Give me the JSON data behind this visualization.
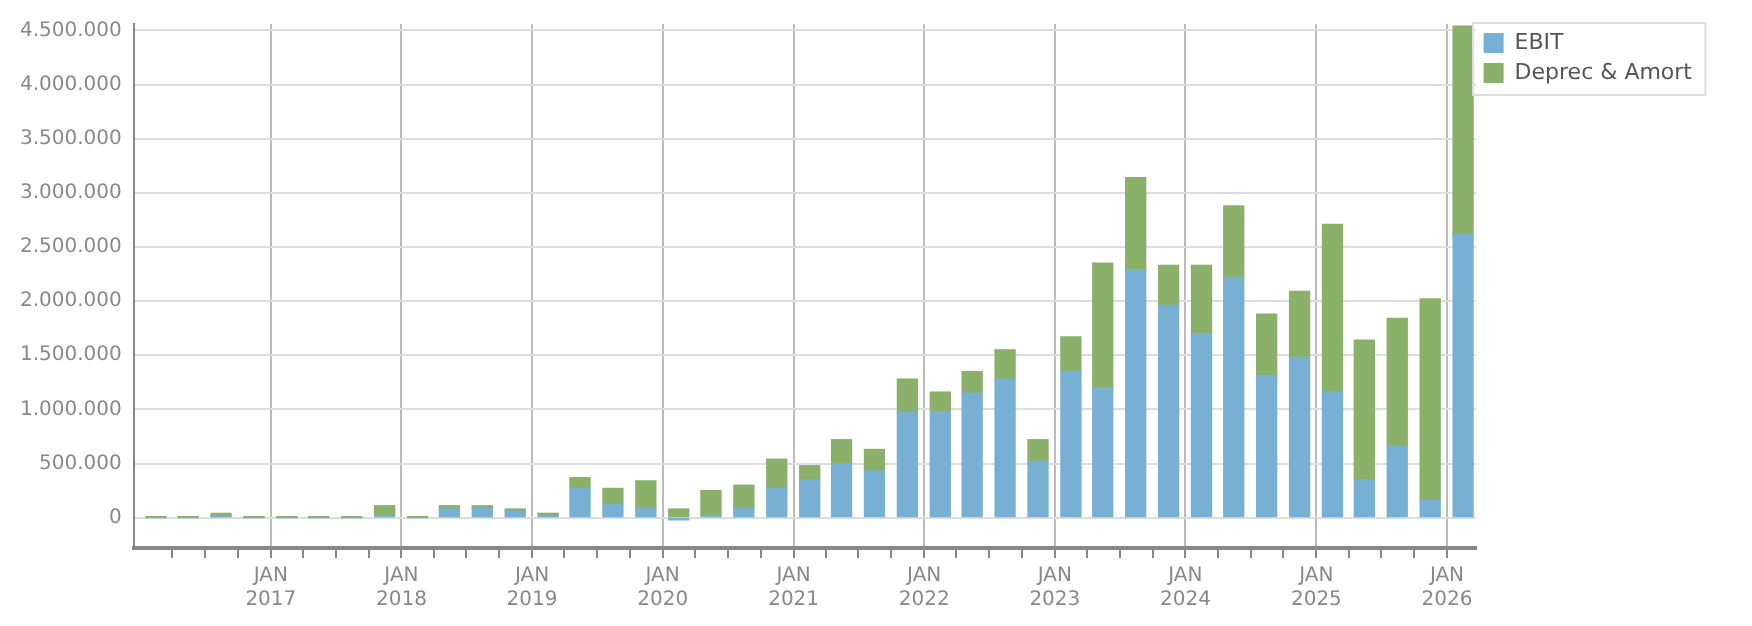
{
  "chart_data": {
    "type": "bar",
    "stacked": true,
    "grid": true,
    "legend": "top right",
    "x": [
      "2016-02-15",
      "2016-05-15",
      "2016-08-15",
      "2016-11-15",
      "2017-02-15",
      "2017-05-15",
      "2017-08-15",
      "2017-11-15",
      "2018-02-15",
      "2018-05-15",
      "2018-08-15",
      "2018-11-15",
      "2019-02-15",
      "2019-05-15",
      "2019-08-15",
      "2019-11-15",
      "2020-02-15",
      "2020-05-15",
      "2020-08-15",
      "2020-11-15",
      "2021-02-15",
      "2021-05-15",
      "2021-08-15",
      "2021-11-15",
      "2022-02-15",
      "2022-05-15",
      "2022-08-15",
      "2022-11-15",
      "2023-02-15",
      "2023-05-15",
      "2023-08-15",
      "2023-11-15",
      "2024-02-15",
      "2024-05-15",
      "2024-08-15",
      "2024-11-15",
      "2025-02-15",
      "2025-05-15",
      "2025-08-15",
      "2025-11-15",
      "2026-02-15"
    ],
    "series": [
      {
        "name": "EBIT",
        "color": "#77b0d3",
        "values": [
          0,
          0,
          10000,
          0,
          0,
          0,
          0,
          20000,
          0,
          80000,
          90000,
          60000,
          20000,
          270000,
          120000,
          90000,
          -20000,
          20000,
          90000,
          270000,
          350000,
          500000,
          430000,
          970000,
          980000,
          1150000,
          1280000,
          520000,
          1350000,
          1200000,
          2290000,
          1960000,
          1700000,
          2220000,
          1310000,
          1480000,
          1160000,
          350000,
          660000,
          160000,
          2620000
        ]
      },
      {
        "name": "Deprec & Amort",
        "color": "#8ab06a",
        "values": [
          10000,
          10000,
          30000,
          10000,
          10000,
          10000,
          10000,
          90000,
          10000,
          30000,
          20000,
          20000,
          20000,
          100000,
          150000,
          250000,
          80000,
          230000,
          210000,
          270000,
          130000,
          220000,
          200000,
          310000,
          180000,
          200000,
          270000,
          200000,
          320000,
          1150000,
          850000,
          370000,
          630000,
          660000,
          570000,
          610000,
          1550000,
          1290000,
          1180000,
          1860000,
          1920000
        ]
      }
    ],
    "xlim": [
      "2015-12-15",
      "2026-03-22"
    ],
    "xticks": [
      {
        "value": "2016-04-01",
        "label": null
      },
      {
        "value": "2016-07-01",
        "label": null
      },
      {
        "value": "2016-10-01",
        "label": null
      },
      {
        "value": "2017-01-01",
        "label": "JAN\n2017"
      },
      {
        "value": "2017-04-01",
        "label": null
      },
      {
        "value": "2017-07-01",
        "label": null
      },
      {
        "value": "2017-10-01",
        "label": null
      },
      {
        "value": "2018-01-01",
        "label": "JAN\n2018"
      },
      {
        "value": "2018-04-01",
        "label": null
      },
      {
        "value": "2018-07-01",
        "label": null
      },
      {
        "value": "2018-10-01",
        "label": null
      },
      {
        "value": "2019-01-01",
        "label": "JAN\n2019"
      },
      {
        "value": "2019-04-01",
        "label": null
      },
      {
        "value": "2019-07-01",
        "label": null
      },
      {
        "value": "2019-10-01",
        "label": null
      },
      {
        "value": "2020-01-01",
        "label": "JAN\n2020"
      },
      {
        "value": "2020-04-01",
        "label": null
      },
      {
        "value": "2020-07-01",
        "label": null
      },
      {
        "value": "2020-10-01",
        "label": null
      },
      {
        "value": "2021-01-01",
        "label": "JAN\n2021"
      },
      {
        "value": "2021-04-01",
        "label": null
      },
      {
        "value": "2021-07-01",
        "label": null
      },
      {
        "value": "2021-10-01",
        "label": null
      },
      {
        "value": "2022-01-01",
        "label": "JAN\n2022"
      },
      {
        "value": "2022-04-01",
        "label": null
      },
      {
        "value": "2022-07-01",
        "label": null
      },
      {
        "value": "2022-10-01",
        "label": null
      },
      {
        "value": "2023-01-01",
        "label": "JAN\n2023"
      },
      {
        "value": "2023-04-01",
        "label": null
      },
      {
        "value": "2023-07-01",
        "label": null
      },
      {
        "value": "2023-10-01",
        "label": null
      },
      {
        "value": "2024-01-01",
        "label": "JAN\n2024"
      },
      {
        "value": "2024-04-01",
        "label": null
      },
      {
        "value": "2024-07-01",
        "label": null
      },
      {
        "value": "2024-10-01",
        "label": null
      },
      {
        "value": "2025-01-01",
        "label": "JAN\n2025"
      },
      {
        "value": "2025-04-01",
        "label": null
      },
      {
        "value": "2025-07-01",
        "label": null
      },
      {
        "value": "2025-10-01",
        "label": null
      },
      {
        "value": "2026-01-01",
        "label": "JAN\n2026"
      }
    ],
    "ylim": [
      -280000,
      4560000
    ],
    "yticks": [
      {
        "value": 0,
        "label": "0"
      },
      {
        "value": 500000,
        "label": "500.000"
      },
      {
        "value": 1000000,
        "label": "1.000.000"
      },
      {
        "value": 1500000,
        "label": "1.500.000"
      },
      {
        "value": 2000000,
        "label": "2.000.000"
      },
      {
        "value": 2500000,
        "label": "2.500.000"
      },
      {
        "value": 3000000,
        "label": "3.000.000"
      },
      {
        "value": 3500000,
        "label": "3.500.000"
      },
      {
        "value": 4000000,
        "label": "4.000.000"
      },
      {
        "value": 4500000,
        "label": "4.500.000"
      }
    ]
  }
}
